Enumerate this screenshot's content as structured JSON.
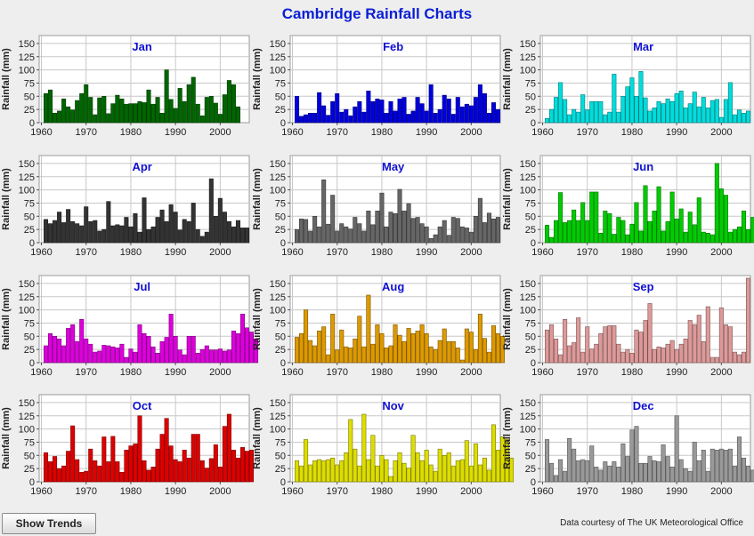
{
  "title": "Cambridge Rainfall Charts",
  "button_label": "Show Trends",
  "credit": "Data courtesy of The UK Meteorological Office",
  "chart_data": [
    {
      "type": "bar",
      "title": "Jan",
      "color": "#006600",
      "xlabel": "",
      "ylabel": "Rainfall (mm)",
      "ylim": [
        0,
        165
      ],
      "xticks": [
        1960,
        1970,
        1980,
        1990,
        2000
      ],
      "yticks": [
        0,
        25,
        50,
        75,
        100,
        125,
        150
      ],
      "grid": true,
      "start_year": 1961,
      "values": [
        55,
        62,
        18,
        22,
        45,
        30,
        24,
        42,
        55,
        72,
        48,
        15,
        47,
        50,
        17,
        36,
        52,
        45,
        35,
        36,
        36,
        40,
        38,
        62,
        35,
        48,
        18,
        100,
        44,
        27,
        65,
        40,
        72,
        86,
        35,
        13,
        48,
        50,
        37,
        16,
        53,
        80,
        72,
        30
      ]
    },
    {
      "type": "bar",
      "title": "Feb",
      "color": "#0000dd",
      "xlabel": "",
      "ylabel": "Rainfall (mm)",
      "ylim": [
        0,
        165
      ],
      "xticks": [
        1960,
        1970,
        1980,
        1990,
        2000
      ],
      "yticks": [
        0,
        25,
        50,
        75,
        100,
        125,
        150
      ],
      "grid": true,
      "start_year": 1961,
      "values": [
        50,
        12,
        15,
        18,
        18,
        57,
        32,
        14,
        40,
        55,
        20,
        25,
        13,
        30,
        40,
        20,
        60,
        40,
        45,
        43,
        18,
        40,
        22,
        45,
        48,
        16,
        22,
        48,
        36,
        22,
        72,
        18,
        25,
        52,
        45,
        16,
        48,
        30,
        35,
        32,
        48,
        72,
        55,
        18,
        38,
        25
      ]
    },
    {
      "type": "bar",
      "title": "Mar",
      "color": "#00dddd",
      "xlabel": "",
      "ylabel": "Rainfall (mm)",
      "ylim": [
        0,
        165
      ],
      "xticks": [
        1960,
        1970,
        1980,
        1990,
        2000
      ],
      "yticks": [
        0,
        25,
        50,
        75,
        100,
        125,
        150
      ],
      "grid": true,
      "start_year": 1961,
      "values": [
        8,
        25,
        48,
        76,
        44,
        15,
        25,
        20,
        53,
        24,
        40,
        40,
        40,
        15,
        20,
        92,
        20,
        50,
        68,
        85,
        50,
        97,
        47,
        22,
        28,
        40,
        36,
        45,
        40,
        55,
        60,
        28,
        36,
        58,
        30,
        48,
        28,
        42,
        44,
        10,
        44,
        76,
        15,
        24,
        18,
        22
      ]
    },
    {
      "type": "bar",
      "title": "Apr",
      "color": "#333333",
      "xlabel": "",
      "ylabel": "Rainfall (mm)",
      "ylim": [
        0,
        165
      ],
      "xticks": [
        1960,
        1970,
        1980,
        1990,
        2000
      ],
      "yticks": [
        0,
        25,
        50,
        75,
        100,
        125,
        150
      ],
      "grid": true,
      "start_year": 1961,
      "values": [
        44,
        36,
        42,
        58,
        38,
        63,
        40,
        36,
        32,
        68,
        40,
        42,
        22,
        25,
        78,
        32,
        34,
        32,
        48,
        30,
        55,
        20,
        85,
        25,
        30,
        48,
        62,
        40,
        72,
        58,
        24,
        44,
        40,
        75,
        25,
        12,
        20,
        121,
        50,
        84,
        58,
        40,
        30,
        42,
        28,
        28
      ]
    },
    {
      "type": "bar",
      "title": "May",
      "color": "#666666",
      "xlabel": "",
      "ylabel": "Rainfall (mm)",
      "ylim": [
        0,
        165
      ],
      "xticks": [
        1960,
        1970,
        1980,
        1990,
        2000
      ],
      "yticks": [
        0,
        25,
        50,
        75,
        100,
        125,
        150
      ],
      "grid": true,
      "start_year": 1961,
      "values": [
        25,
        45,
        44,
        22,
        50,
        30,
        119,
        35,
        90,
        22,
        36,
        30,
        26,
        48,
        36,
        22,
        60,
        34,
        60,
        94,
        30,
        58,
        55,
        101,
        60,
        74,
        46,
        48,
        36,
        30,
        8,
        15,
        30,
        42,
        14,
        48,
        46,
        30,
        28,
        20,
        50,
        84,
        38,
        56,
        45,
        48
      ]
    },
    {
      "type": "bar",
      "title": "Jun",
      "color": "#00cc00",
      "xlabel": "",
      "ylabel": "Rainfall (mm)",
      "ylim": [
        0,
        165
      ],
      "xticks": [
        1960,
        1970,
        1980,
        1990,
        2000
      ],
      "yticks": [
        0,
        25,
        50,
        75,
        100,
        125,
        150
      ],
      "grid": true,
      "start_year": 1961,
      "values": [
        33,
        10,
        42,
        95,
        38,
        42,
        62,
        42,
        76,
        42,
        96,
        96,
        18,
        60,
        55,
        16,
        48,
        42,
        15,
        35,
        76,
        22,
        108,
        40,
        60,
        106,
        22,
        40,
        96,
        45,
        64,
        20,
        58,
        34,
        85,
        20,
        18,
        15,
        150,
        102,
        90,
        20,
        25,
        30,
        60,
        25,
        48
      ]
    },
    {
      "type": "bar",
      "title": "Jul",
      "color": "#dd00dd",
      "xlabel": "",
      "ylabel": "Rainfall (mm)",
      "ylim": [
        0,
        165
      ],
      "xticks": [
        1960,
        1970,
        1980,
        1990,
        2000
      ],
      "yticks": [
        0,
        25,
        50,
        75,
        100,
        125,
        150
      ],
      "grid": true,
      "start_year": 1961,
      "values": [
        32,
        55,
        50,
        45,
        32,
        65,
        72,
        40,
        82,
        45,
        35,
        20,
        22,
        33,
        32,
        30,
        28,
        35,
        10,
        26,
        20,
        72,
        55,
        50,
        30,
        18,
        40,
        48,
        92,
        50,
        24,
        15,
        50,
        50,
        18,
        25,
        32,
        24,
        24,
        26,
        22,
        24,
        60,
        55,
        92,
        66,
        58,
        45
      ]
    },
    {
      "type": "bar",
      "title": "Aug",
      "color": "#dd9900",
      "xlabel": "",
      "ylabel": "Rainfall (mm)",
      "ylim": [
        0,
        165
      ],
      "xticks": [
        1960,
        1970,
        1980,
        1990,
        2000
      ],
      "yticks": [
        0,
        25,
        50,
        75,
        100,
        125,
        150
      ],
      "grid": true,
      "start_year": 1961,
      "values": [
        48,
        55,
        100,
        42,
        32,
        60,
        68,
        15,
        92,
        24,
        62,
        30,
        28,
        45,
        88,
        30,
        128,
        35,
        72,
        55,
        28,
        32,
        72,
        52,
        40,
        65,
        55,
        60,
        72,
        55,
        30,
        25,
        42,
        64,
        40,
        40,
        28,
        5,
        64,
        58,
        25,
        92,
        46,
        20,
        70,
        55,
        50
      ]
    },
    {
      "type": "bar",
      "title": "Sep",
      "color": "#dd9999",
      "xlabel": "",
      "ylabel": "Rainfall (mm)",
      "ylim": [
        0,
        165
      ],
      "xticks": [
        1960,
        1970,
        1980,
        1990,
        2000
      ],
      "yticks": [
        0,
        25,
        50,
        75,
        100,
        125,
        150
      ],
      "grid": true,
      "start_year": 1961,
      "values": [
        62,
        72,
        45,
        15,
        82,
        32,
        38,
        85,
        20,
        68,
        26,
        35,
        55,
        68,
        70,
        70,
        35,
        20,
        25,
        18,
        62,
        58,
        80,
        112,
        25,
        30,
        28,
        35,
        42,
        25,
        35,
        45,
        80,
        72,
        90,
        40,
        106,
        10,
        10,
        104,
        72,
        68,
        20,
        15,
        20,
        160
      ]
    },
    {
      "type": "bar",
      "title": "Oct",
      "color": "#dd0000",
      "xlabel": "",
      "ylabel": "Rainfall (mm)",
      "ylim": [
        0,
        165
      ],
      "xticks": [
        1960,
        1970,
        1980,
        1990,
        2000
      ],
      "yticks": [
        0,
        25,
        50,
        75,
        100,
        125,
        150
      ],
      "grid": true,
      "start_year": 1961,
      "values": [
        55,
        38,
        48,
        25,
        30,
        58,
        106,
        42,
        18,
        20,
        62,
        40,
        30,
        85,
        38,
        86,
        38,
        18,
        60,
        68,
        72,
        125,
        40,
        22,
        28,
        62,
        90,
        120,
        68,
        42,
        38,
        60,
        45,
        90,
        90,
        40,
        26,
        44,
        70,
        28,
        105,
        128,
        60,
        45,
        65,
        58,
        60
      ]
    },
    {
      "type": "bar",
      "title": "Nov",
      "color": "#dddd00",
      "xlabel": "",
      "ylabel": "Rainfall (mm)",
      "ylim": [
        0,
        165
      ],
      "xticks": [
        1960,
        1970,
        1980,
        1990,
        2000
      ],
      "yticks": [
        0,
        25,
        50,
        75,
        100,
        125,
        150
      ],
      "grid": true,
      "start_year": 1961,
      "values": [
        40,
        30,
        80,
        32,
        40,
        42,
        40,
        42,
        45,
        32,
        40,
        55,
        118,
        62,
        30,
        128,
        42,
        88,
        30,
        50,
        42,
        10,
        40,
        55,
        35,
        26,
        88,
        55,
        40,
        60,
        32,
        20,
        62,
        50,
        55,
        30,
        40,
        42,
        78,
        30,
        72,
        32,
        45,
        22,
        108,
        60,
        85,
        80,
        45
      ]
    },
    {
      "type": "bar",
      "title": "Dec",
      "color": "#999999",
      "xlabel": "",
      "ylabel": "Rainfall (mm)",
      "ylim": [
        0,
        165
      ],
      "xticks": [
        1960,
        1970,
        1980,
        1990,
        2000
      ],
      "yticks": [
        0,
        25,
        50,
        75,
        100,
        125,
        150
      ],
      "grid": true,
      "start_year": 1961,
      "values": [
        80,
        35,
        12,
        42,
        20,
        82,
        62,
        40,
        42,
        40,
        68,
        28,
        22,
        38,
        30,
        38,
        28,
        72,
        48,
        98,
        105,
        35,
        35,
        48,
        40,
        38,
        70,
        48,
        28,
        125,
        42,
        25,
        20,
        75,
        40,
        60,
        20,
        62,
        60,
        62,
        60,
        62,
        30,
        85,
        45,
        30,
        22,
        18
      ]
    }
  ]
}
